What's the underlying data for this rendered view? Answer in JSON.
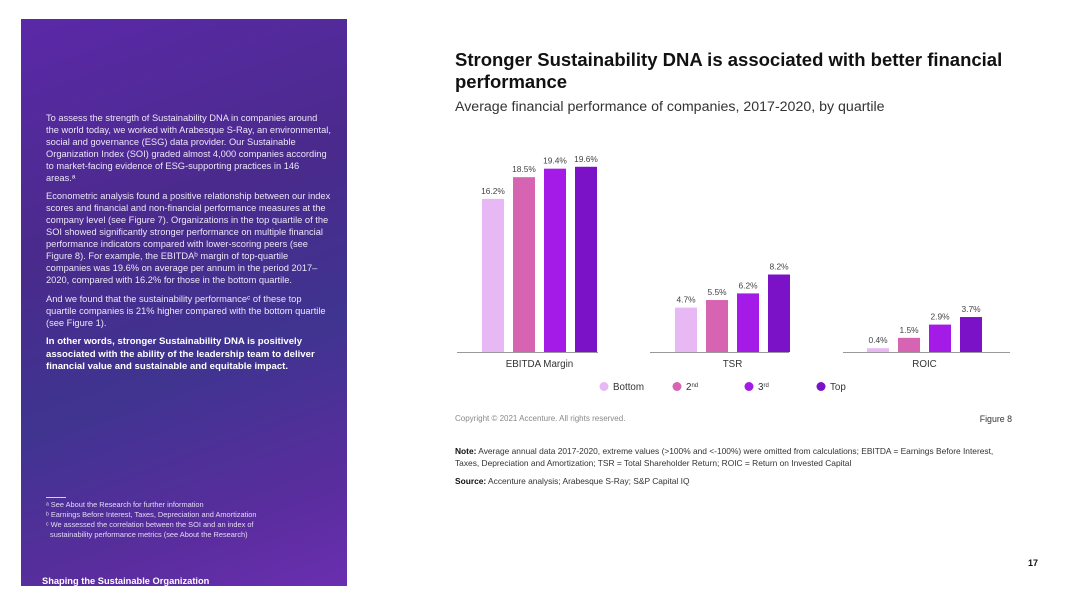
{
  "sidebar": {
    "paragraphs": [
      "To assess the strength of Sustainability DNA in companies around the world today, we worked with Arabesque S-Ray, an environmental, social and governance (ESG) data provider. Our Sustainable Organization Index (SOI) graded almost 4,000 companies according to market-facing evidence of ESG-supporting practices in 146 areas.ᵃ",
      "Econometric analysis found a positive relationship between our index scores and financial and non-financial performance measures at the company level (see Figure 7). Organizations in the top quartile of the SOI showed significantly stronger performance on multiple financial performance indicators compared with lower-scoring peers (see Figure 8). For example, the EBITDAᵇ margin of top-quartile companies was 19.6% on average per annum in the period 2017–2020, compared with 16.2% for those in the bottom quartile.",
      "And we found that the sustainability performanceᶜ of these top quartile companies is 21% higher compared with the bottom quartile (see Figure 1)."
    ],
    "bold_paragraph": "In other words, stronger Sustainability DNA is positively associated with the ability of the leadership team to deliver financial value and sustainable and equitable impact.",
    "footnotes": [
      "ᵃ See About the Research for further information",
      "ᵇ Earnings Before Interest, Taxes, Depreciation and Amortization",
      "ᶜ We assessed the correlation between the SOI and an index of",
      "sustainability performance metrics (see About the Research)"
    ],
    "section_label": "Shaping the Sustainable Organization"
  },
  "header": {
    "title": "Stronger Sustainability DNA is associated with better financial performance",
    "subtitle": "Average financial performance of companies, 2017-2020, by quartile"
  },
  "chart_data": {
    "type": "bar",
    "title": "Stronger Sustainability DNA is associated with better financial performance",
    "subtitle": "Average financial performance of companies, 2017-2020, by quartile",
    "unit": "%",
    "categories": [
      "EBITDA Margin",
      "TSR",
      "ROIC"
    ],
    "series": [
      {
        "name": "Bottom",
        "color": "#e8b8f4",
        "values": [
          16.2,
          4.7,
          0.4
        ],
        "labels": [
          "16.2%",
          "4.7%",
          "0.4%"
        ]
      },
      {
        "name": "2nd",
        "legend_suffix": "nd",
        "color": "#d764b2",
        "values": [
          18.5,
          5.5,
          1.5
        ],
        "labels": [
          "18.5%",
          "5.5%",
          "1.5%"
        ]
      },
      {
        "name": "3rd",
        "legend_suffix": "rd",
        "color": "#a41ae6",
        "values": [
          19.4,
          6.2,
          2.9
        ],
        "labels": [
          "19.4%",
          "6.2%",
          "2.9%"
        ]
      },
      {
        "name": "Top",
        "color": "#7b12c7",
        "values": [
          19.6,
          8.2,
          3.7
        ],
        "labels": [
          "19.6%",
          "8.2%",
          "3.7%"
        ]
      }
    ],
    "legend_position": "bottom",
    "grid": false
  },
  "footer": {
    "copyright": "Copyright © 2021 Accenture. All rights reserved.",
    "figure": "Figure 8",
    "note_label": "Note:",
    "note_text": " Average annual data 2017-2020, extreme values (>100% and <-100%) were omitted from calculations; EBITDA = Earnings Before Interest, Taxes, Depreciation and Amortization; TSR = Total Shareholder Return; ROIC = Return on Invested Capital",
    "source_label": "Source:",
    "source_text": " Accenture analysis; Arabesque S-Ray; S&P Capital IQ",
    "page_number": "17"
  }
}
